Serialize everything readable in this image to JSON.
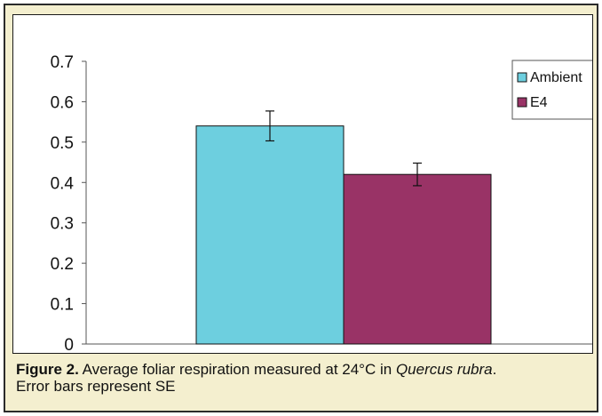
{
  "chart_data": {
    "type": "bar",
    "categories": [
      ""
    ],
    "series": [
      {
        "name": "Ambient",
        "values": [
          0.54
        ],
        "error": [
          0.037
        ],
        "color": "#6dcfdf"
      },
      {
        "name": "E4",
        "values": [
          0.42
        ],
        "error": [
          0.028
        ],
        "color": "#993366"
      }
    ],
    "ylim": [
      0,
      0.7
    ],
    "yticks": [
      "0",
      "0.1",
      "0.2",
      "0.3",
      "0.4",
      "0.5",
      "0.6",
      "0.7"
    ],
    "xlabel": "",
    "ylabel": "",
    "grid": false,
    "legend_position": "top-right"
  },
  "caption": {
    "label": "Figure 2.",
    "text_before": " Average foliar respiration measured at 24°C in ",
    "species": "Quercus rubra",
    "text_after": ".",
    "line2": "Error bars represent SE"
  }
}
